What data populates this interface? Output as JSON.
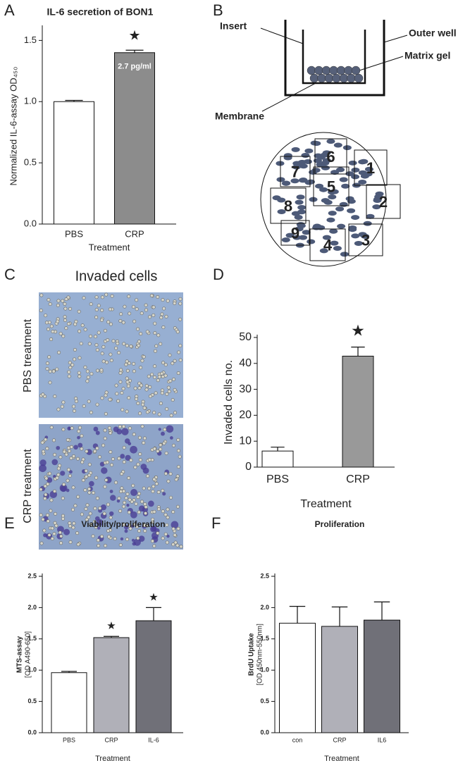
{
  "panel_labels": [
    "A",
    "B",
    "C",
    "D",
    "E",
    "F"
  ],
  "chart_data": [
    {
      "type": "bar",
      "title": "IL-6 secretion of BON1",
      "y_label": "Normalized IL-6-assay OD₄₅₀",
      "x_label": "Treatment",
      "categories": [
        "PBS",
        "CRP"
      ],
      "values": [
        1.0,
        1.4
      ],
      "errors": [
        0.01,
        0.02
      ],
      "colors": [
        "#ffffff",
        "#8c8c8c"
      ],
      "markers": [
        null,
        "★"
      ],
      "bar_text": [
        null,
        "2.7 pg/ml"
      ],
      "ylim": [
        0,
        1.6
      ],
      "yticks": [
        {
          "value": 0,
          "label": "0.0"
        },
        0.5,
        {
          "value": 1,
          "label": "1.0"
        },
        1.5
      ]
    },
    {
      "type": "bar",
      "y_label": "Invaded cells no.",
      "x_label": "Treatment",
      "categories": [
        "PBS",
        "CRP"
      ],
      "values": [
        6.2,
        42.8
      ],
      "errors": [
        1.5,
        3.5
      ],
      "colors": [
        "#ffffff",
        "#999999"
      ],
      "markers": [
        null,
        "★"
      ],
      "ylim": [
        0,
        50
      ],
      "yticks": [
        0,
        10,
        20,
        30,
        40,
        50
      ]
    },
    {
      "type": "bar",
      "title": "Viability/proliferation",
      "y_label": [
        "MTS-assay",
        "[OD A490-650]"
      ],
      "x_label": "Treatment",
      "categories": [
        "PBS",
        "CRP",
        "IL-6"
      ],
      "values": [
        0.96,
        1.52,
        1.79
      ],
      "errors": [
        0.02,
        0.02,
        0.21
      ],
      "colors": [
        "#ffffff",
        "#b0b0b8",
        "#707078"
      ],
      "markers": [
        null,
        "★",
        "★"
      ],
      "ylim": [
        0,
        2.5
      ],
      "yticks": [
        {
          "value": 0,
          "label": "0.0"
        },
        0.5,
        {
          "value": 1,
          "label": "1.0"
        },
        1.5,
        {
          "value": 2,
          "label": "2.0"
        },
        2.5
      ]
    },
    {
      "type": "bar",
      "title": "Proliferation",
      "y_label": [
        "BrdU Uptake",
        "[OD 450nm-550nm]"
      ],
      "x_label": "Treatment",
      "categories": [
        "con",
        "CRP",
        "IL6"
      ],
      "values": [
        1.75,
        1.7,
        1.8
      ],
      "errors": [
        0.27,
        0.31,
        0.29
      ],
      "colors": [
        "#ffffff",
        "#b0b0b8",
        "#707078"
      ],
      "ylim": [
        0,
        2.5
      ],
      "yticks": [
        {
          "value": 0,
          "label": "0.0"
        },
        0.5,
        {
          "value": 1,
          "label": "1.0"
        },
        1.5,
        {
          "value": 2,
          "label": "2.0"
        },
        2.5
      ]
    }
  ],
  "diagram": {
    "insert": "Insert",
    "outer_well": "Outer well",
    "matrix_gel": "Matrix gel",
    "membrane": "Membrane",
    "fields": [
      "1",
      "2",
      "3",
      "4",
      "5",
      "6",
      "7",
      "8",
      "9"
    ]
  },
  "micrographs": {
    "title": "Invaded cells",
    "panels": [
      "PBS treatment",
      "CRP treatment"
    ]
  }
}
